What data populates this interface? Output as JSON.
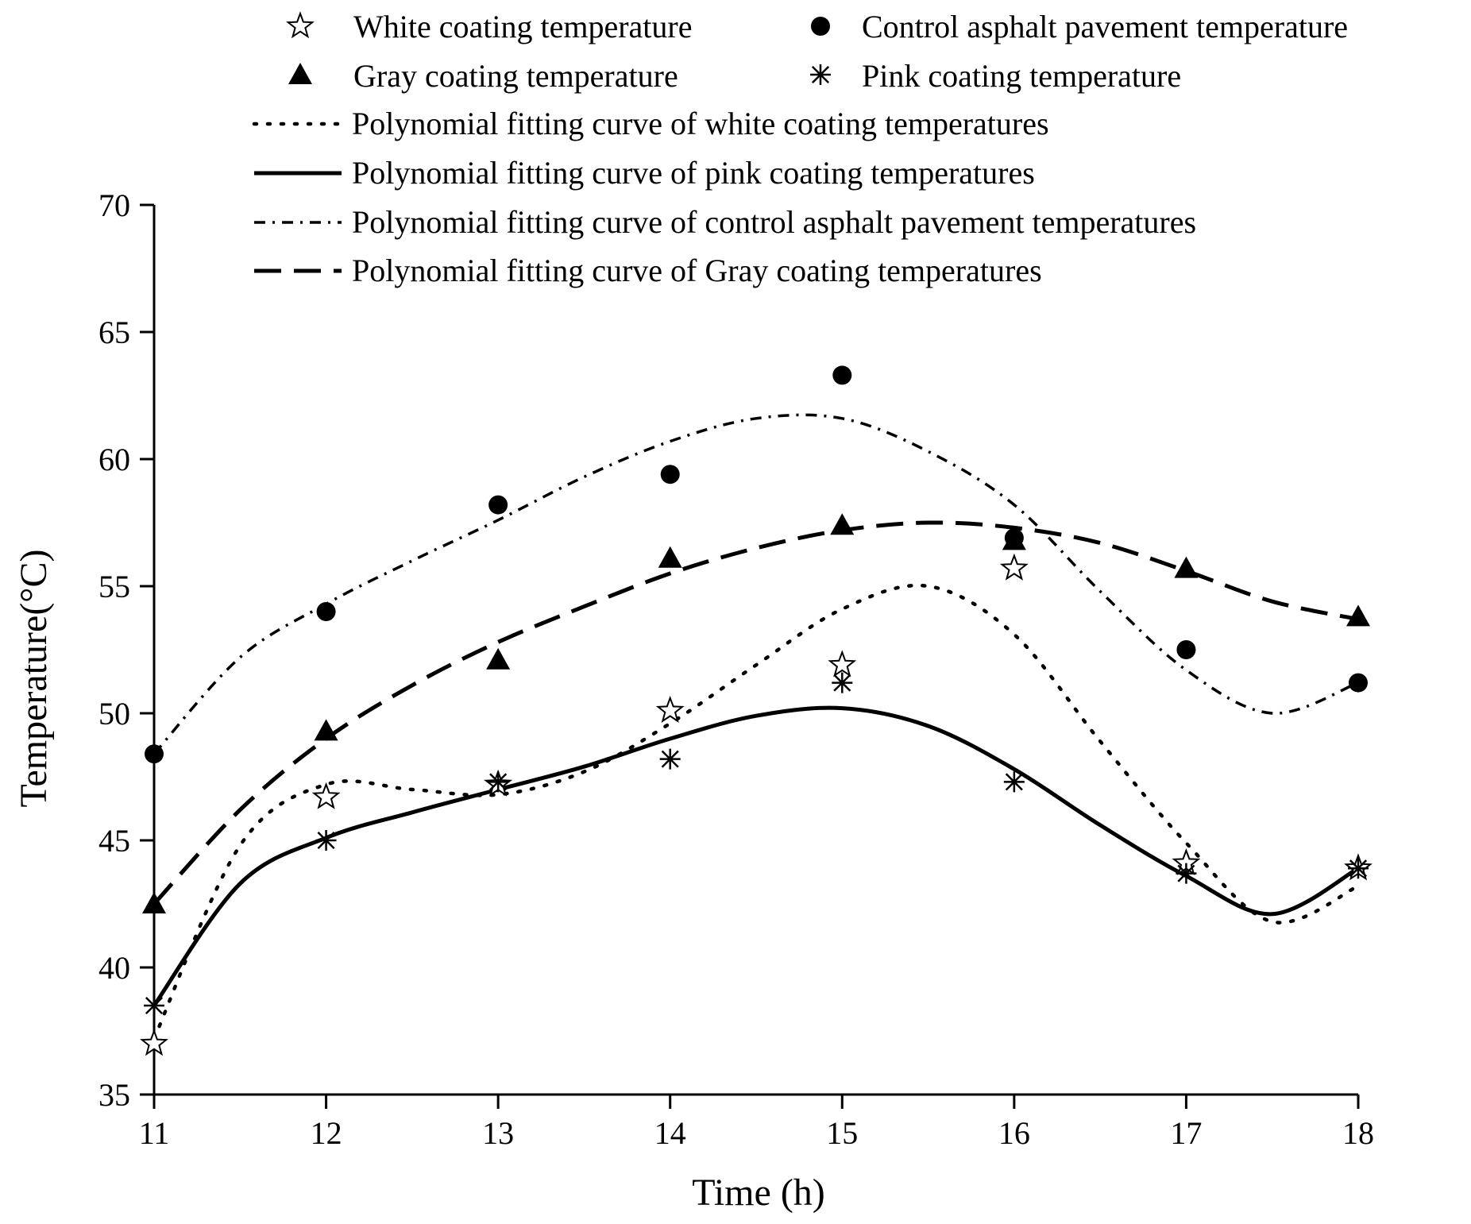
{
  "chart_data": {
    "type": "scatter",
    "title": "",
    "xlabel": "Time (h)",
    "ylabel": "Temperature(°C)",
    "xlim": [
      11,
      18
    ],
    "ylim": [
      35,
      70
    ],
    "xticks": [
      11,
      12,
      13,
      14,
      15,
      16,
      17,
      18
    ],
    "yticks": [
      35,
      40,
      45,
      50,
      55,
      60,
      65,
      70
    ],
    "grid": false,
    "legend_position": "top",
    "x": [
      11,
      12,
      13,
      14,
      15,
      16,
      17,
      18
    ],
    "series": [
      {
        "name": "White coating temperature",
        "marker": "open-star",
        "values": [
          37.0,
          46.7,
          47.2,
          50.1,
          51.9,
          55.7,
          44.1,
          43.9
        ]
      },
      {
        "name": "Control asphalt pavement temperature",
        "marker": "filled-circle",
        "values": [
          48.4,
          54.0,
          58.2,
          59.4,
          63.3,
          56.9,
          52.5,
          51.2
        ]
      },
      {
        "name": "Gray coating temperature",
        "marker": "filled-triangle",
        "values": [
          42.5,
          49.3,
          52.1,
          56.1,
          57.4,
          56.8,
          55.7,
          53.8
        ]
      },
      {
        "name": "Pink coating temperature",
        "marker": "asterisk",
        "values": [
          38.5,
          45.0,
          47.3,
          48.2,
          51.2,
          47.3,
          43.7,
          43.9
        ]
      }
    ],
    "fit_curves": [
      {
        "name": "Polynomial fitting curve of white coating temperatures",
        "style": "dotted",
        "x": [
          11,
          11.5,
          12,
          12.5,
          13,
          13.5,
          14,
          14.5,
          15,
          15.5,
          16,
          16.5,
          17,
          17.5,
          18
        ],
        "values": [
          37.2,
          44.8,
          47.2,
          47.0,
          46.8,
          47.7,
          49.6,
          51.9,
          54.1,
          55.0,
          53.1,
          48.9,
          44.9,
          41.8,
          43.2
        ]
      },
      {
        "name": "Polynomial fitting curve of pink coating temperatures",
        "style": "solid",
        "x": [
          11,
          11.5,
          12,
          12.5,
          13,
          13.5,
          14,
          14.5,
          15,
          15.5,
          16,
          16.5,
          17,
          17.5,
          18
        ],
        "values": [
          38.5,
          43.3,
          45.1,
          46.1,
          47.0,
          47.9,
          49.0,
          49.9,
          50.2,
          49.5,
          47.8,
          45.6,
          43.6,
          42.1,
          43.9
        ]
      },
      {
        "name": "Polynomial fitting curve of control asphalt pavement temperatures",
        "style": "dash-dot",
        "x": [
          11,
          11.5,
          12,
          12.5,
          13,
          13.5,
          14,
          14.5,
          15,
          15.5,
          16,
          16.5,
          17,
          17.5,
          18
        ],
        "values": [
          48.4,
          52.2,
          54.3,
          56.0,
          57.6,
          59.3,
          60.7,
          61.6,
          61.6,
          60.3,
          58.2,
          54.8,
          51.7,
          50.0,
          51.2
        ]
      },
      {
        "name": "Polynomial fitting curve of Gray coating temperatures",
        "style": "dashed",
        "x": [
          11,
          11.5,
          12,
          12.5,
          13,
          13.5,
          14,
          14.5,
          15,
          15.5,
          16,
          16.5,
          17,
          17.5,
          18
        ],
        "values": [
          42.5,
          46.2,
          49.0,
          51.1,
          52.8,
          54.2,
          55.5,
          56.5,
          57.2,
          57.5,
          57.3,
          56.7,
          55.6,
          54.4,
          53.7
        ]
      }
    ]
  }
}
